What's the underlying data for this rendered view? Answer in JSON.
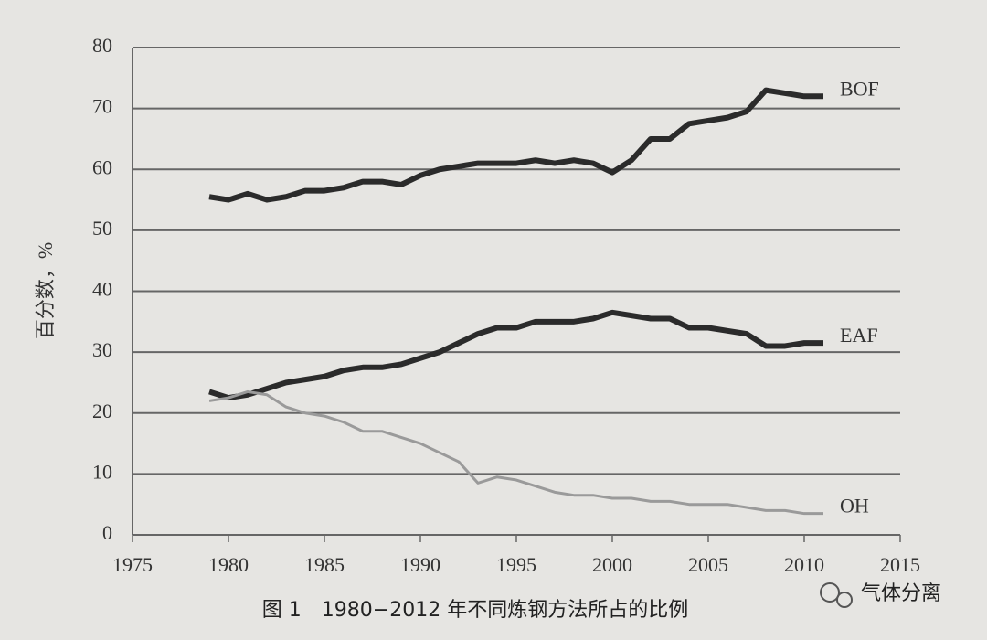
{
  "chart_data": {
    "type": "line",
    "ylabel": "百分数，%",
    "caption": "图 1　1980−2012 年不同炼钢方法所占的比例",
    "watermark": "气体分离",
    "x": [
      1979,
      1980,
      1981,
      1982,
      1983,
      1984,
      1985,
      1986,
      1987,
      1988,
      1989,
      1990,
      1991,
      1992,
      1993,
      1994,
      1995,
      1996,
      1997,
      1998,
      1999,
      2000,
      2001,
      2002,
      2003,
      2004,
      2005,
      2006,
      2007,
      2008,
      2009,
      2010,
      2011
    ],
    "series": [
      {
        "name": "BOF",
        "color": "#2b2b2b",
        "values": [
          55.5,
          55,
          56,
          55,
          55.5,
          56.5,
          56.5,
          57,
          58,
          58,
          57.5,
          59,
          60,
          60.5,
          61,
          61,
          61,
          61.5,
          61,
          61.5,
          61,
          59.5,
          61.5,
          65,
          65,
          67.5,
          68,
          68.5,
          69.5,
          73,
          72.5,
          72,
          72
        ]
      },
      {
        "name": "EAF",
        "color": "#2b2b2b",
        "values": [
          23.5,
          22.5,
          23,
          24,
          25,
          25.5,
          26,
          27,
          27.5,
          27.5,
          28,
          29,
          30,
          31.5,
          33,
          34,
          34,
          35,
          35,
          35,
          35.5,
          36.5,
          36,
          35.5,
          35.5,
          34,
          34,
          33.5,
          33,
          31,
          31,
          31.5,
          31.5
        ]
      },
      {
        "name": "OH",
        "color": "#9a9a9a",
        "values": [
          22,
          22.5,
          23.5,
          23,
          21,
          20,
          19.5,
          18.5,
          17,
          17,
          16,
          15,
          13.5,
          12,
          8.5,
          9.5,
          9,
          8,
          7,
          6.5,
          6.5,
          6,
          6,
          5.5,
          5.5,
          5,
          5,
          5,
          4.5,
          4,
          4,
          3.5,
          3.5
        ]
      }
    ],
    "xlim": [
      1975,
      2015
    ],
    "xticks": [
      1975,
      1980,
      1985,
      1990,
      1995,
      2000,
      2005,
      2010,
      2015
    ],
    "ylim": [
      0,
      80
    ],
    "yticks": [
      0,
      10,
      20,
      30,
      40,
      50,
      60,
      70,
      80
    ],
    "grid": true
  }
}
